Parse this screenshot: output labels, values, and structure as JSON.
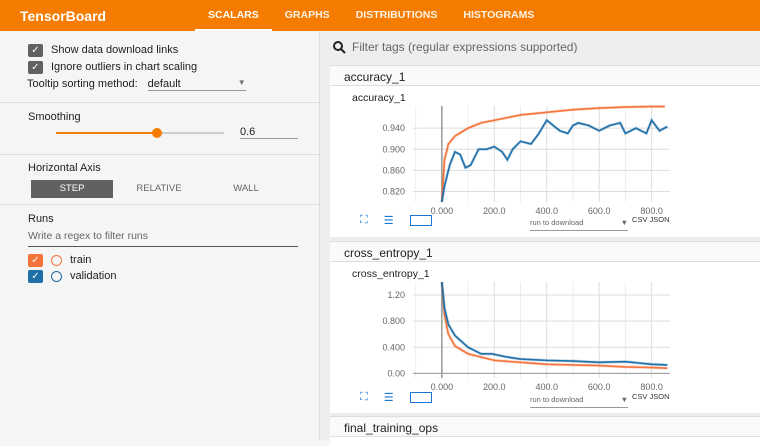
{
  "header": {
    "title": "TensorBoard",
    "tabs": [
      "SCALARS",
      "GRAPHS",
      "DISTRIBUTIONS",
      "HISTOGRAMS"
    ],
    "active_tab": "SCALARS"
  },
  "sidebar": {
    "show_download_links": "Show data download links",
    "ignore_outliers": "Ignore outliers in chart scaling",
    "tooltip_label": "Tooltip sorting method:",
    "tooltip_value": "default",
    "smoothing_label": "Smoothing",
    "smoothing_value": "0.6",
    "smoothing_fraction": 0.6,
    "horizontal_axis_label": "Horizontal Axis",
    "axis_options": [
      "STEP",
      "RELATIVE",
      "WALL"
    ],
    "axis_selected": "STEP",
    "runs_label": "Runs",
    "runs_filter_placeholder": "Write a regex to filter runs",
    "runs": [
      {
        "name": "train",
        "color": "#f4743b"
      },
      {
        "name": "validation",
        "color": "#1f6fa8"
      }
    ]
  },
  "main": {
    "filter_placeholder": "Filter tags (regular expressions supported)",
    "groups": [
      "accuracy_1",
      "cross_entropy_1",
      "final_training_ops"
    ],
    "download_select": "run to download",
    "csv": "CSV",
    "json": "JSON"
  },
  "colors": {
    "accent": "#f57c00",
    "train": "#f4743b",
    "validation": "#1f6fa8"
  },
  "chart_data": [
    {
      "type": "line",
      "title": "accuracy_1",
      "xlim": [
        -110,
        870
      ],
      "ylim": [
        0.8,
        0.982
      ],
      "xticks": [
        "0.000",
        "200.0",
        "400.0",
        "600.0",
        "800.0"
      ],
      "xtick_values": [
        0,
        200,
        400,
        600,
        800
      ],
      "yticks": [
        "0.820",
        "0.860",
        "0.900",
        "0.940"
      ],
      "ytick_values": [
        0.82,
        0.86,
        0.9,
        0.94
      ],
      "series": [
        {
          "name": "train",
          "color": "#f4743b",
          "x": [
            0,
            10,
            25,
            50,
            100,
            150,
            200,
            250,
            300,
            400,
            500,
            600,
            700,
            800,
            850
          ],
          "y": [
            0.8,
            0.88,
            0.91,
            0.925,
            0.94,
            0.95,
            0.955,
            0.96,
            0.965,
            0.97,
            0.975,
            0.978,
            0.98,
            0.981,
            0.981
          ]
        },
        {
          "name": "validation",
          "color": "#1f6fa8",
          "x": [
            0,
            10,
            30,
            50,
            70,
            90,
            110,
            140,
            170,
            200,
            230,
            250,
            270,
            300,
            340,
            370,
            400,
            450,
            480,
            500,
            520,
            560,
            600,
            640,
            680,
            700,
            740,
            780,
            800,
            830,
            860
          ],
          "y": [
            0.8,
            0.83,
            0.87,
            0.895,
            0.89,
            0.865,
            0.87,
            0.9,
            0.9,
            0.905,
            0.895,
            0.88,
            0.9,
            0.915,
            0.91,
            0.93,
            0.955,
            0.935,
            0.93,
            0.945,
            0.95,
            0.945,
            0.935,
            0.945,
            0.95,
            0.93,
            0.94,
            0.93,
            0.955,
            0.935,
            0.943
          ]
        }
      ]
    },
    {
      "type": "line",
      "title": "cross_entropy_1",
      "xlim": [
        -110,
        870
      ],
      "ylim": [
        -0.07,
        1.4
      ],
      "xticks": [
        "0.000",
        "200.0",
        "400.0",
        "600.0",
        "800.0"
      ],
      "xtick_values": [
        0,
        200,
        400,
        600,
        800
      ],
      "yticks": [
        "0.00",
        "0.400",
        "0.800",
        "1.20"
      ],
      "ytick_values": [
        0,
        0.4,
        0.8,
        1.2
      ],
      "series": [
        {
          "name": "train",
          "color": "#f4743b",
          "x": [
            0,
            10,
            25,
            50,
            100,
            150,
            200,
            300,
            400,
            500,
            600,
            700,
            800,
            860
          ],
          "y": [
            1.4,
            0.9,
            0.6,
            0.42,
            0.3,
            0.25,
            0.2,
            0.17,
            0.14,
            0.13,
            0.12,
            0.1,
            0.09,
            0.08
          ]
        },
        {
          "name": "validation",
          "color": "#1f6fa8",
          "x": [
            0,
            10,
            25,
            50,
            100,
            150,
            190,
            250,
            300,
            400,
            500,
            600,
            700,
            800,
            860
          ],
          "y": [
            1.4,
            1.0,
            0.75,
            0.58,
            0.4,
            0.3,
            0.3,
            0.25,
            0.22,
            0.2,
            0.19,
            0.17,
            0.18,
            0.14,
            0.13
          ]
        }
      ]
    }
  ]
}
